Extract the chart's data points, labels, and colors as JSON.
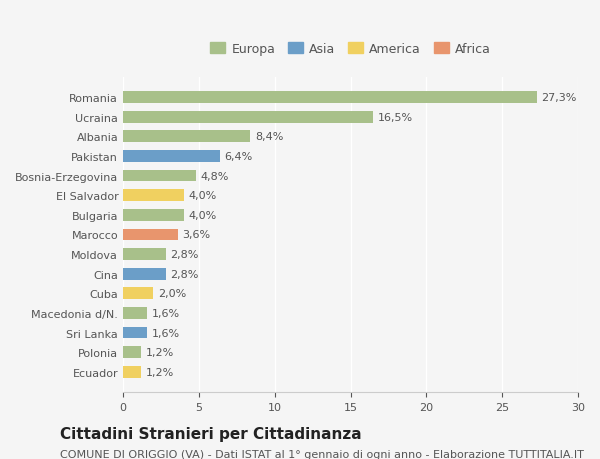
{
  "categories": [
    "Romania",
    "Ucraina",
    "Albania",
    "Pakistan",
    "Bosnia-Erzegovina",
    "El Salvador",
    "Bulgaria",
    "Marocco",
    "Moldova",
    "Cina",
    "Cuba",
    "Macedonia d/N.",
    "Sri Lanka",
    "Polonia",
    "Ecuador"
  ],
  "values": [
    27.3,
    16.5,
    8.4,
    6.4,
    4.8,
    4.0,
    4.0,
    3.6,
    2.8,
    2.8,
    2.0,
    1.6,
    1.6,
    1.2,
    1.2
  ],
  "labels": [
    "27,3%",
    "16,5%",
    "8,4%",
    "6,4%",
    "4,8%",
    "4,0%",
    "4,0%",
    "3,6%",
    "2,8%",
    "2,8%",
    "2,0%",
    "1,6%",
    "1,6%",
    "1,2%",
    "1,2%"
  ],
  "continents": [
    "Europa",
    "Europa",
    "Europa",
    "Asia",
    "Europa",
    "America",
    "Europa",
    "Africa",
    "Europa",
    "Asia",
    "America",
    "Europa",
    "Asia",
    "Europa",
    "America"
  ],
  "continent_colors": {
    "Europa": "#a8c08a",
    "Asia": "#6b9ec8",
    "America": "#f0d060",
    "Africa": "#e8956d"
  },
  "legend_order": [
    "Europa",
    "Asia",
    "America",
    "Africa"
  ],
  "title": "Cittadini Stranieri per Cittadinanza",
  "subtitle": "COMUNE DI ORIGGIO (VA) - Dati ISTAT al 1° gennaio di ogni anno - Elaborazione TUTTITALIA.IT",
  "xlim": [
    0,
    30
  ],
  "xticks": [
    0,
    5,
    10,
    15,
    20,
    25,
    30
  ],
  "background_color": "#f5f5f5",
  "bar_height": 0.6,
  "label_fontsize": 8,
  "title_fontsize": 11,
  "subtitle_fontsize": 8,
  "ytick_fontsize": 8,
  "xtick_fontsize": 8,
  "legend_fontsize": 9
}
